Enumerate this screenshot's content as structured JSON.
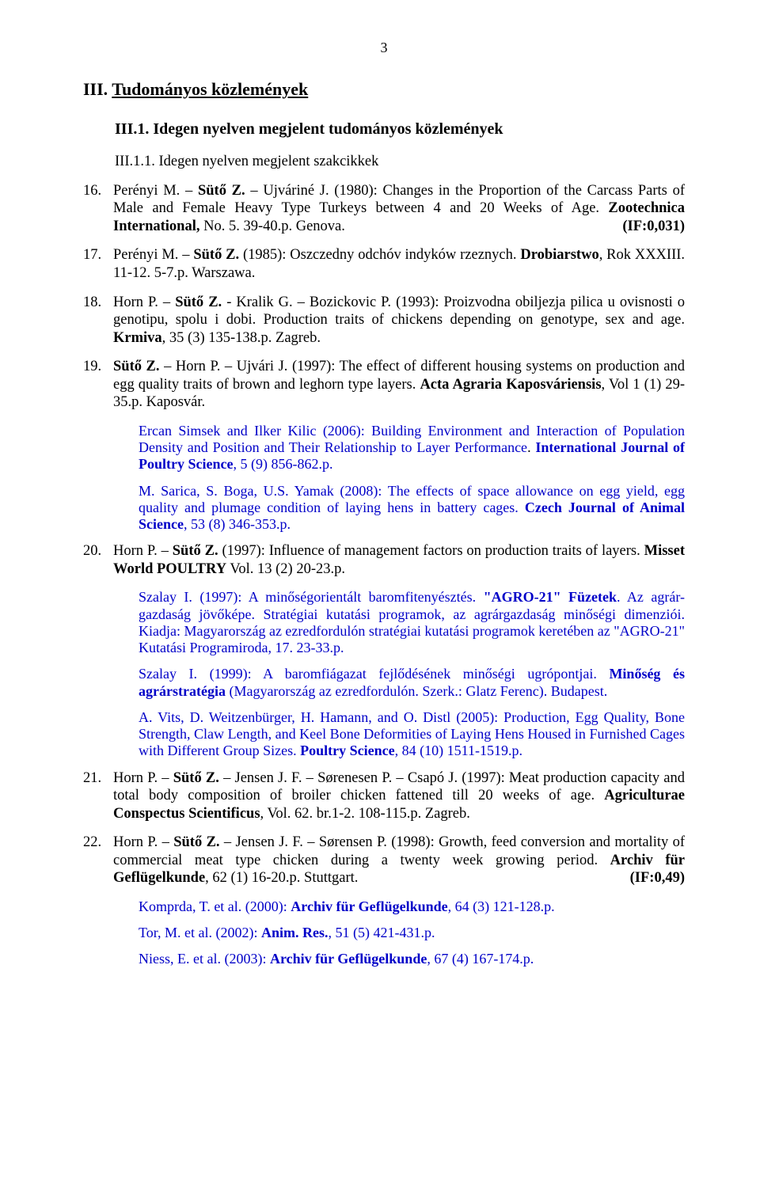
{
  "pageNumber": "3",
  "h1_prefix": "III. ",
  "h1": "Tudományos közlemények",
  "h2": "III.1. Idegen nyelven megjelent tudományos közlemények",
  "h3": "III.1.1. Idegen nyelven megjelent szakcikkek",
  "e16": {
    "num": "16.",
    "auth1": "Perényi M. – ",
    "suto": "Sütő Z.",
    "auth2": " – Ujváriné J. (1980): Changes in the Proportion of the Carcass Parts of Male and Female Heavy Type Turkeys between 4 and 20 Weeks of Age. ",
    "src": "Zootechnica International,",
    "tail": " No. 5. 39-40.p. Genova.",
    "if": "(IF:0,031)"
  },
  "e17": {
    "num": "17.",
    "auth1": "Perényi M. – ",
    "suto": "Sütő Z.",
    "mid": " (1985): Oszczedny odchóv indyków rzeznych. ",
    "src": "Drobiarstwo",
    "tail": ", Rok XXXIII. 11-12. 5-7.p. Warszawa."
  },
  "e18": {
    "num": "18.",
    "auth1": "Horn P. – ",
    "suto": "Sütő Z.",
    "mid": " - Kralik G. – Bozickovic P. (1993): Proizvodna obiljezja pilica u ovisnosti o genotipu, spolu i dobi. Production traits of chickens depending on genotype, sex and age. ",
    "src": "Krmiva",
    "tail": ", 35 (3) 135-138.p. Zagreb."
  },
  "e19": {
    "num": "19.",
    "suto": "Sütő Z.",
    "mid": " – Horn P. – Ujvári J. (1997): The effect of different housing systems on production and egg quality traits of brown and leghorn type layers. ",
    "src": "Acta Agraria Kaposváriensis",
    "tail": ", Vol 1 (1) 29-35.p. Kaposvár."
  },
  "c19a": {
    "t1": "Ercan Simsek and Ilker Kilic (2006): Building Environment and Interaction of Population Density and Position and Their Relationship to Layer Performance",
    "dot": ". ",
    "src": "International Journal of Poultry Science",
    "tail": ", 5 (9) 856-862.p."
  },
  "c19b": {
    "t1": "M. Sarica, S. Boga, U.S. Yamak (2008): The effects of space allowance on egg yield, egg quality and plumage condition of laying hens in battery cages. ",
    "src": "Czech Journal of Animal Science",
    "tail": ", 53 (8) 346-353.p."
  },
  "e20": {
    "num": "20.",
    "auth1": "Horn P. – ",
    "suto": "Sütő Z.",
    "mid": " (1997): Influence of management factors on production traits of layers. ",
    "src": "Misset World POULTRY",
    "tail": " Vol. 13 (2) 20-23.p."
  },
  "c20a": {
    "t1": "Szalay I. (1997): A minőségorientált baromfitenyésztés. ",
    "src": "\"AGRO-21\" Füzetek",
    "t2": ". Az agrár-gazdaság jövőképe. Stratégiai kutatási programok, az agrárgazdaság minőségi dimenziói. Kiadja: Magyarország az ezredfordulón stratégiai kutatási programok keretében az \"AGRO-21\" Kutatási Programiroda, 17. 23-33.p."
  },
  "c20b": {
    "t1": "Szalay I. (1999): A baromfiágazat fejlődésének minőségi ugrópontjai. ",
    "src": "Minőség és agrárstratégia",
    "t2": " (Magyarország az ezredfordulón. Szerk.: Glatz Ferenc). Budapest."
  },
  "c20c": {
    "t1": "A. Vits, D. Weitzenbürger, H. Hamann, and O. Distl (2005): Production, Egg Quality, Bone Strength, Claw Length, and Keel Bone Deformities of Laying Hens Housed in Furnished Cages with Different Group Sizes. ",
    "src": "Poultry Science",
    "tail": ", 84 (10) 1511-1519.p."
  },
  "e21": {
    "num": "21.",
    "auth1": "Horn P. – ",
    "suto": "Sütő Z.",
    "mid": " – Jensen J. F. – Sørenesen P. – Csapó J. (1997): Meat production capacity and total body composition of broiler chicken fattened till 20 weeks of age. ",
    "src": "Agriculturae Conspectus Scientificus",
    "tail": ", Vol. 62. br.1-2. 108-115.p. Zagreb."
  },
  "e22": {
    "num": "22.",
    "auth1": "Horn P. – ",
    "suto": "Sütő Z.",
    "mid": " – Jensen J. F. – Sørensen P. (1998): Growth, feed conversion and mortality of commercial meat type chicken during a twenty week growing period. ",
    "src": "Archiv für Geflügelkunde",
    "tail": ", 62 (1) 16-20.p. Stuttgart.",
    "if": "(IF:0,49)"
  },
  "c22a": {
    "t1": "Komprda, T. et al. (2000): ",
    "src": "Archiv für Geflügelkunde",
    "tail": ", 64 (3) 121-128.p."
  },
  "c22b": {
    "t1": "Tor, M. et al. (2002): ",
    "src": "Anim. Res.",
    "tail": ", 51 (5) 421-431.p."
  },
  "c22c": {
    "t1": "Niess, E. et al. (2003): ",
    "src": "Archiv für Geflügelkunde",
    "tail": ", 67 (4) 167-174.p."
  }
}
